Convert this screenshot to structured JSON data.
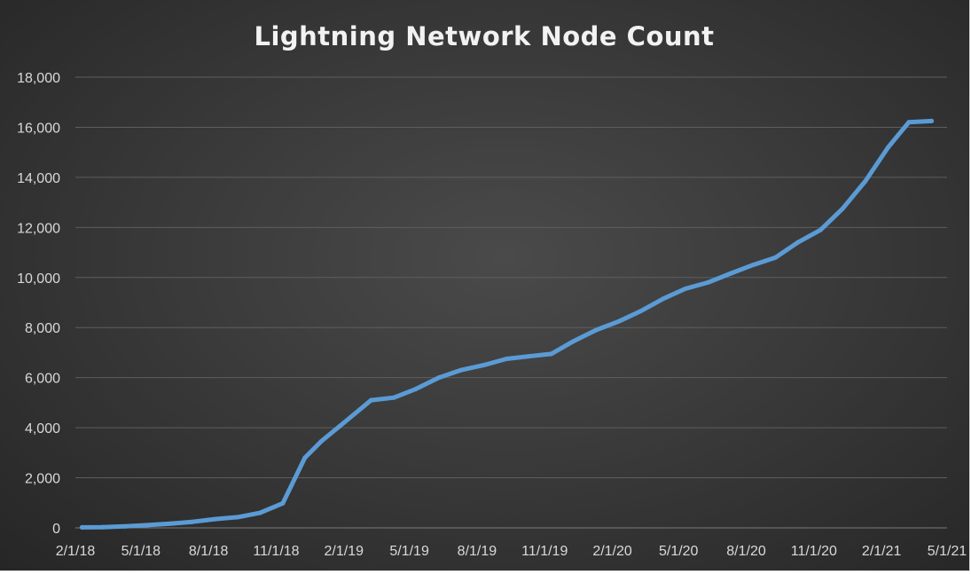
{
  "chart_data": {
    "type": "line",
    "title": "Lightning Network Node Count",
    "xlabel": "",
    "ylabel": "",
    "ylim": [
      0,
      18000
    ],
    "y_ticks": [
      0,
      2000,
      4000,
      6000,
      8000,
      10000,
      12000,
      14000,
      16000,
      18000
    ],
    "y_tick_labels": [
      "0",
      "2,000",
      "4,000",
      "6,000",
      "8,000",
      "10,000",
      "12,000",
      "14,000",
      "16,000",
      "18,000"
    ],
    "xlim": [
      "2018-02-01",
      "2021-05-01"
    ],
    "x_ticks": [
      "2018-02-01",
      "2018-05-01",
      "2018-08-01",
      "2018-11-01",
      "2019-02-01",
      "2019-05-01",
      "2019-08-01",
      "2019-11-01",
      "2020-02-01",
      "2020-05-01",
      "2020-08-01",
      "2020-11-01",
      "2021-02-01",
      "2021-05-01"
    ],
    "x_tick_labels": [
      "2/1/18",
      "5/1/18",
      "8/1/18",
      "11/1/18",
      "2/1/19",
      "5/1/19",
      "8/1/19",
      "11/1/19",
      "2/1/20",
      "5/1/20",
      "8/1/20",
      "11/1/20",
      "2/1/21",
      "5/1/21"
    ],
    "grid": true,
    "legend": false,
    "line_color": "#5b9bd5",
    "series": [
      {
        "x": [
          "2018-02-10",
          "2018-03-10",
          "2018-04-10",
          "2018-05-10",
          "2018-06-10",
          "2018-07-10",
          "2018-08-10",
          "2018-09-10",
          "2018-10-10",
          "2018-11-10",
          "2018-12-10",
          "2019-01-01",
          "2019-02-01",
          "2019-03-10",
          "2019-04-10",
          "2019-05-10",
          "2019-06-10",
          "2019-07-10",
          "2019-08-10",
          "2019-09-10",
          "2019-10-10",
          "2019-11-10",
          "2019-12-10",
          "2020-01-10",
          "2020-02-10",
          "2020-03-10",
          "2020-04-10",
          "2020-05-10",
          "2020-06-10",
          "2020-07-10",
          "2020-08-10",
          "2020-09-10",
          "2020-10-10",
          "2020-11-10",
          "2020-12-10",
          "2021-01-10",
          "2021-02-10",
          "2021-03-10",
          "2021-04-10"
        ],
        "y": [
          20,
          30,
          60,
          110,
          170,
          240,
          350,
          430,
          600,
          980,
          2800,
          3450,
          4200,
          5100,
          5200,
          5550,
          6000,
          6300,
          6500,
          6750,
          6850,
          6950,
          7450,
          7900,
          8250,
          8650,
          9150,
          9550,
          9800,
          10150,
          10500,
          10800,
          11400,
          11900,
          12750,
          13850,
          15200,
          16200,
          16250
        ]
      }
    ]
  }
}
